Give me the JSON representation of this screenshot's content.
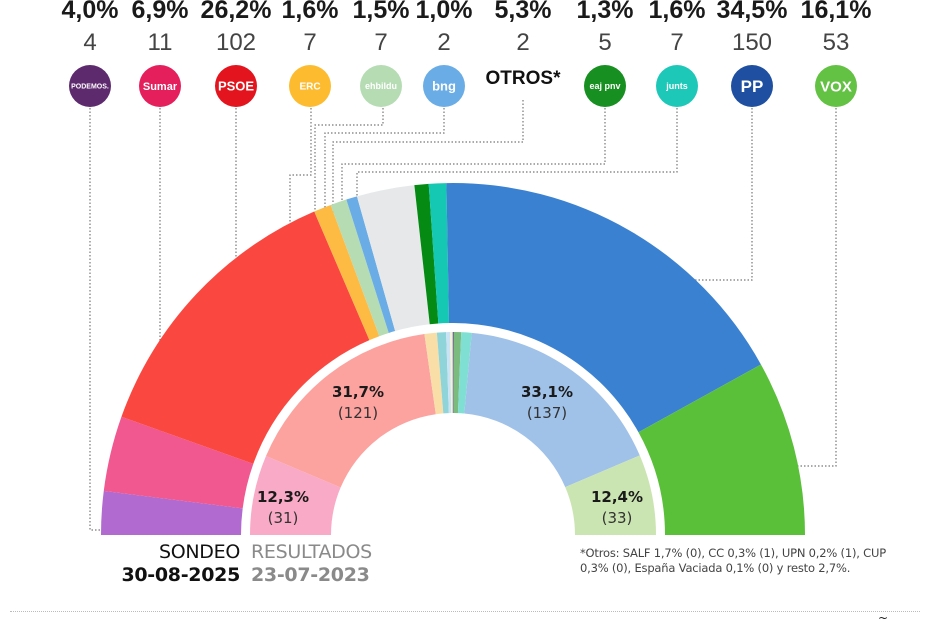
{
  "chart_data": {
    "type": "pie",
    "subtype": "double-hemicycle",
    "title": "",
    "outer_ring": {
      "label": "SONDEO",
      "date": "30-08-2025",
      "parties": [
        {
          "id": "podemos",
          "name": "PODEMOS",
          "pct": 4.0,
          "pct_label": "4,0%",
          "seats": 4,
          "color": "#b06ad0",
          "logo_color": "#5e2a6e"
        },
        {
          "id": "sumar",
          "name": "Sumar",
          "pct": 6.9,
          "pct_label": "6,9%",
          "seats": 11,
          "color": "#f0588f",
          "logo_color": "#e41f5c"
        },
        {
          "id": "psoe",
          "name": "PSOE",
          "pct": 26.2,
          "pct_label": "26,2%",
          "seats": 102,
          "color": "#fa4840",
          "logo_color": "#e3141d"
        },
        {
          "id": "erc",
          "name": "ERC",
          "pct": 1.6,
          "pct_label": "1,6%",
          "seats": 7,
          "color": "#fdbb44",
          "logo_color": "#fdbb30"
        },
        {
          "id": "ehbildu",
          "name": "ehbildu",
          "pct": 1.5,
          "pct_label": "1,5%",
          "seats": 7,
          "color": "#b6dcb4",
          "logo_color": "#b6dcb4"
        },
        {
          "id": "bng",
          "name": "bng",
          "pct": 1.0,
          "pct_label": "1,0%",
          "seats": 2,
          "color": "#6aace6",
          "logo_color": "#6aace6"
        },
        {
          "id": "otros",
          "name": "OTROS*",
          "pct": 5.3,
          "pct_label": "5,3%",
          "seats": 2,
          "color": "#e6e8ea",
          "logo_color": ""
        },
        {
          "id": "pnv",
          "name": "eaj pnv",
          "pct": 1.3,
          "pct_label": "1,3%",
          "seats": 5,
          "color": "#058a14",
          "logo_color": "#178f21"
        },
        {
          "id": "junts",
          "name": "junts",
          "pct": 1.6,
          "pct_label": "1,6%",
          "seats": 7,
          "color": "#15c8b4",
          "logo_color": "#1ec8b8"
        },
        {
          "id": "pp",
          "name": "PP",
          "pct": 34.5,
          "pct_label": "34,5%",
          "seats": 150,
          "color": "#3a82d1",
          "logo_color": "#1e4fa0"
        },
        {
          "id": "vox",
          "name": "VOX",
          "pct": 16.1,
          "pct_label": "16,1%",
          "seats": 53,
          "color": "#5ac03a",
          "logo_color": "#63c143"
        }
      ]
    },
    "inner_ring": {
      "label": "RESULTADOS",
      "date": "23-07-2023",
      "segments": [
        {
          "id": "sumar",
          "pct": 12.3,
          "pct_label": "12,3%",
          "seats_label": "(31)",
          "seats": 31,
          "color": "#f9aac6",
          "show_label": true
        },
        {
          "id": "psoe",
          "pct": 31.7,
          "pct_label": "31,7%",
          "seats_label": "(121)",
          "seats": 121,
          "color": "#fca3a0",
          "show_label": true
        },
        {
          "id": "erc",
          "pct": 1.9,
          "seats": 7,
          "color": "#f9dfa7",
          "show_label": false
        },
        {
          "id": "ehbildu",
          "pct": 1.4,
          "seats": 6,
          "color": "#8fd4d8",
          "show_label": false
        },
        {
          "id": "bng",
          "pct": 0.6,
          "seats": 1,
          "color": "#c9e3f4",
          "show_label": false
        },
        {
          "id": "otros",
          "pct": 0.4,
          "seats": 1,
          "color": "#f3f1d8",
          "show_label": false
        },
        {
          "id": "cc",
          "pct": 0.2,
          "seats": 1,
          "color": "#6b6b8a",
          "show_label": false
        },
        {
          "id": "pnv",
          "pct": 1.1,
          "seats": 5,
          "color": "#7cbb7e",
          "show_label": false
        },
        {
          "id": "junts",
          "pct": 1.6,
          "seats": 7,
          "color": "#80dfd3",
          "show_label": false
        },
        {
          "id": "pp",
          "pct": 33.1,
          "pct_label": "33,1%",
          "seats_label": "(137)",
          "seats": 137,
          "color": "#a0c2e8",
          "show_label": true
        },
        {
          "id": "vox",
          "pct": 12.4,
          "pct_label": "12,4%",
          "seats_label": "(33)",
          "seats": 33,
          "color": "#cbe5b2",
          "show_label": true
        }
      ]
    },
    "legend_order": [
      "podemos",
      "sumar",
      "psoe",
      "erc",
      "ehbildu",
      "bng",
      "otros",
      "pnv",
      "junts",
      "pp",
      "vox"
    ]
  },
  "labels": {
    "sondeo": "SONDEO",
    "sondeo_date": "30-08-2025",
    "resultados": "RESULTADOS",
    "resultados_date": "23-07-2023",
    "footnote": "*Otros: SALF 1,7% (0), CC 0,3% (1), UPN 0,2% (1), CUP 0,3% (0), España Vaciada 0,1% (0) y resto 2,7%.",
    "logo_texts": {
      "podemos": "PODEMOS.",
      "sumar": "Sumar",
      "psoe": "PSOE",
      "erc": "ERC",
      "ehbildu": "ehbildu",
      "bng": "bng",
      "otros": "OTROS*",
      "pnv": "eaj pnv",
      "junts": "junts",
      "pp": "PP",
      "vox": "VOX"
    },
    "corner_mark": "~"
  }
}
